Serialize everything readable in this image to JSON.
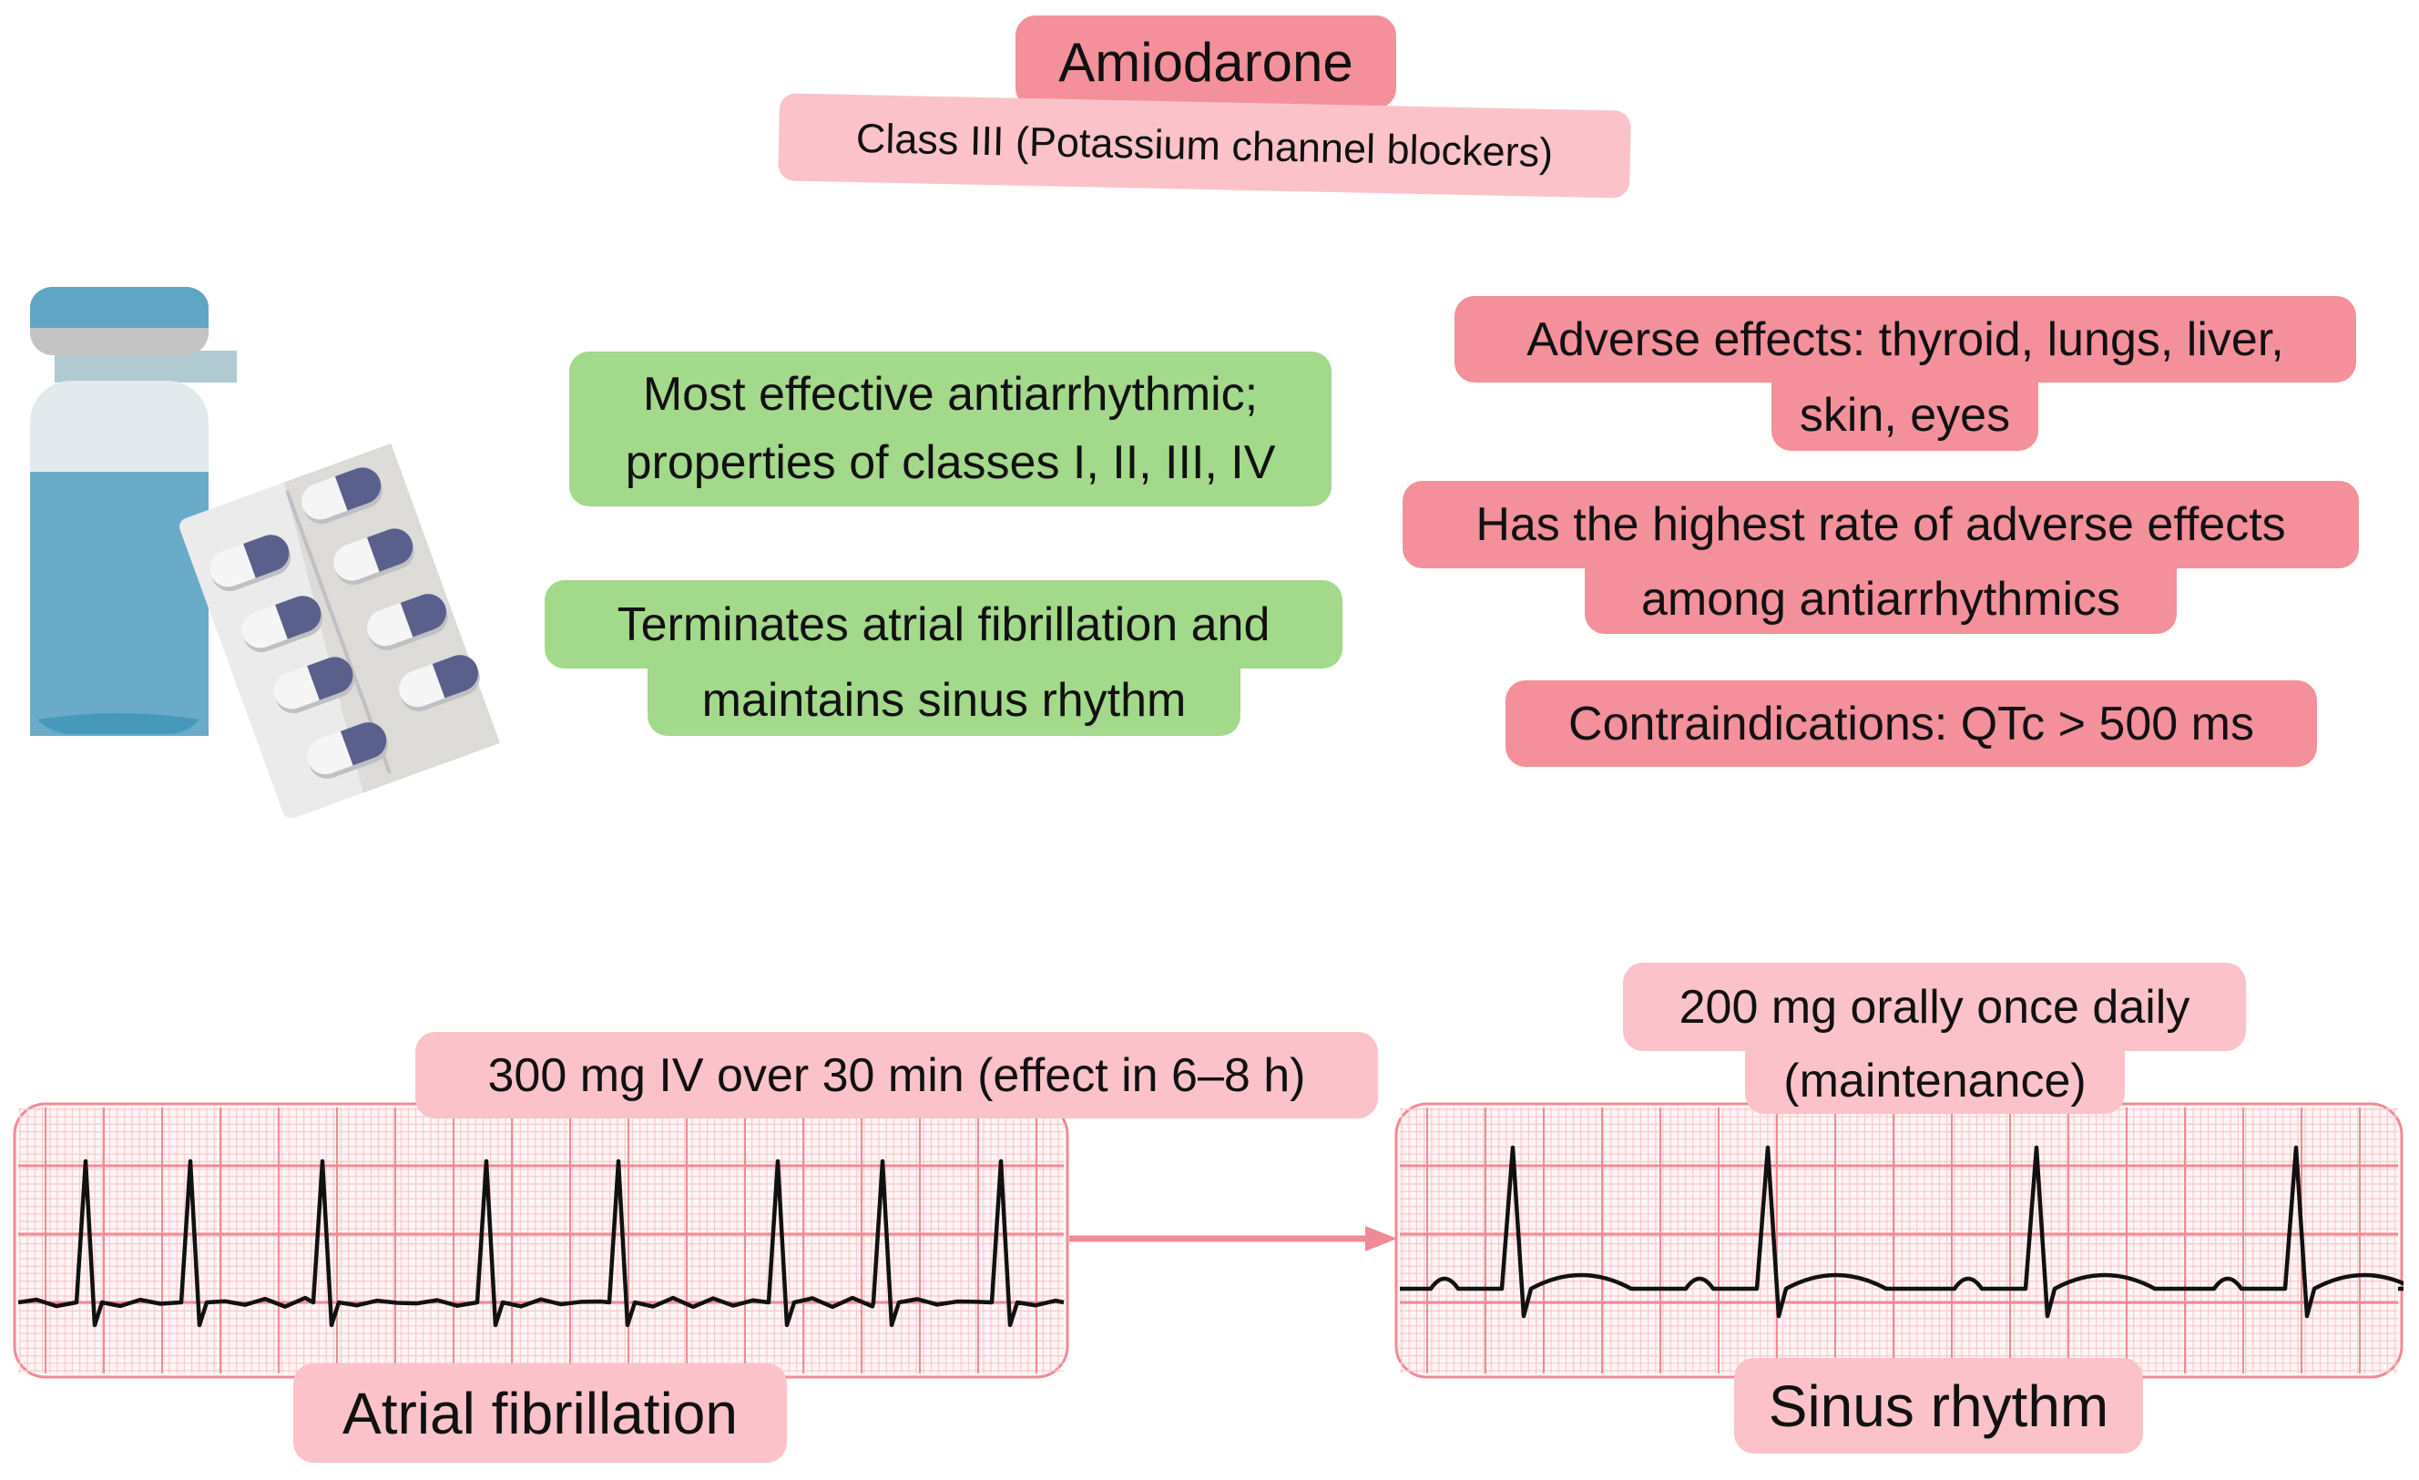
{
  "title": "Amiodarone",
  "subtitle": "Class III (Potassium channel blockers)",
  "benefits": [
    {
      "lines": [
        "Most effective antiarrhythmic;",
        "properties of classes I, II, III, IV"
      ]
    },
    {
      "lines": [
        "Terminates atrial fibrillation and",
        "maintains sinus rhythm"
      ]
    }
  ],
  "warnings": [
    {
      "lines": [
        "Adverse effects: thyroid, lungs, liver,",
        "skin, eyes"
      ]
    },
    {
      "lines": [
        "Has the highest rate of adverse effects",
        "among antiarrhythmics"
      ]
    },
    {
      "lines": [
        "Contraindications: QTc > 500 ms"
      ]
    }
  ],
  "dosing": {
    "iv": "300 mg IV over 30 min (effect in 6–8 h)",
    "oral": [
      "200 mg orally once daily",
      "(maintenance)"
    ]
  },
  "rhythms": {
    "before": "Atrial fibrillation",
    "after": "Sinus rhythm"
  },
  "colors": {
    "red_box": "#f4909a",
    "pink_box": "#fbc3c9",
    "green_box": "#a3d98a",
    "ecg_grid": "#f08a95",
    "vial_blue": "#6aabc9",
    "pill_purple": "#5a608c"
  },
  "icons": [
    "vial-icon",
    "pill-blister-icon",
    "arrow-right-icon"
  ]
}
